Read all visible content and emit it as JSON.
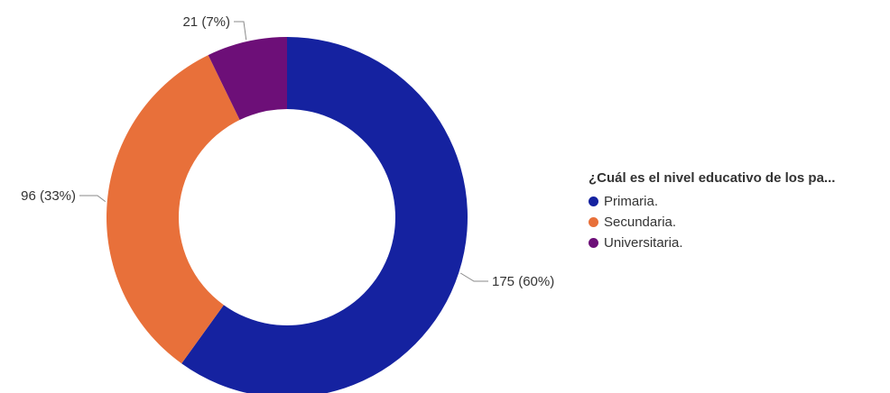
{
  "chart_data": {
    "type": "pie",
    "variant": "donut",
    "title": "",
    "slices": [
      {
        "label": "Primaria.",
        "value": 175,
        "percent": 60,
        "data_label": "175 (60%)",
        "color": "#1522a0"
      },
      {
        "label": "Secundaria.",
        "value": 96,
        "percent": 33,
        "data_label": "96 (33%)",
        "color": "#e8703a"
      },
      {
        "label": "Universitaria.",
        "value": 21,
        "percent": 7,
        "data_label": "21 (7%)",
        "color": "#6d0f78"
      }
    ],
    "legend": {
      "title": "¿Cuál es el nivel educativo de los pa...",
      "placement": "right"
    }
  }
}
